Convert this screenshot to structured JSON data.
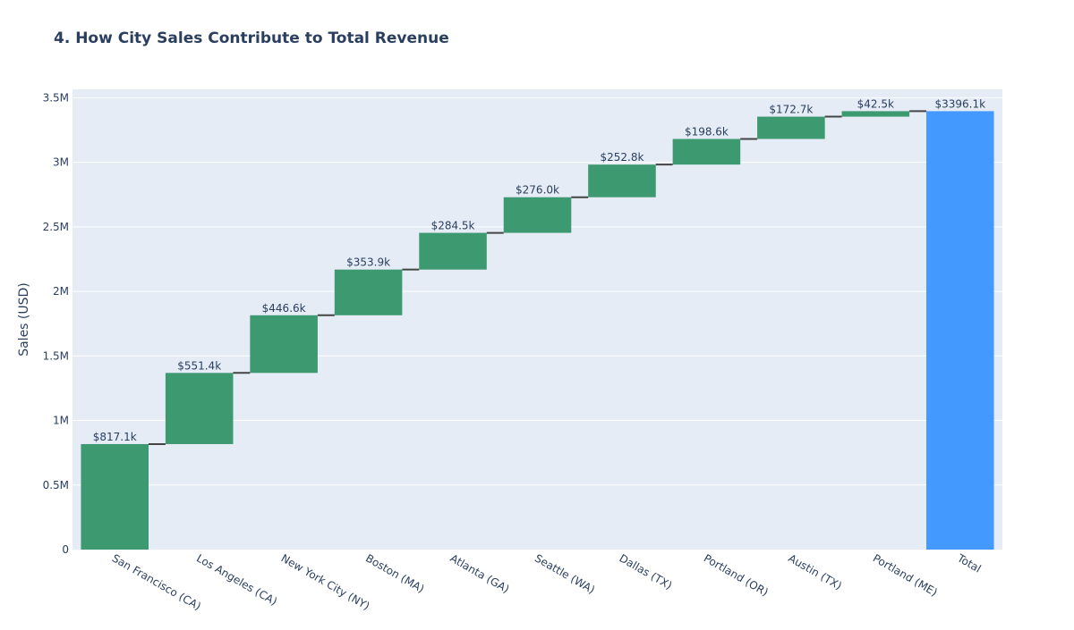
{
  "chart_data": {
    "type": "waterfall",
    "title": "4. How City Sales Contribute to Total Revenue",
    "xlabel": "",
    "ylabel": "Sales (USD)",
    "ylim": [
      0,
      3.5
    ],
    "y_units": "millions USD",
    "y_ticks": [
      0,
      0.5,
      1,
      1.5,
      2,
      2.5,
      3,
      3.5
    ],
    "y_tick_labels": [
      "0",
      "0.5M",
      "1M",
      "1.5M",
      "2M",
      "2.5M",
      "3M",
      "3.5M"
    ],
    "grid": true,
    "colors": {
      "increase": "#3d9970",
      "total": "#4499ff",
      "plot_bg": "#e5ecf6",
      "connector": "#444444"
    },
    "steps": [
      {
        "category": "San Francisco (CA)",
        "value": 817.1,
        "label": "$817.1k",
        "measure": "relative"
      },
      {
        "category": "Los Angeles (CA)",
        "value": 551.4,
        "label": "$551.4k",
        "measure": "relative"
      },
      {
        "category": "New York City (NY)",
        "value": 446.6,
        "label": "$446.6k",
        "measure": "relative"
      },
      {
        "category": "Boston (MA)",
        "value": 353.9,
        "label": "$353.9k",
        "measure": "relative"
      },
      {
        "category": "Atlanta (GA)",
        "value": 284.5,
        "label": "$284.5k",
        "measure": "relative"
      },
      {
        "category": "Seattle (WA)",
        "value": 276.0,
        "label": "$276.0k",
        "measure": "relative"
      },
      {
        "category": "Dallas (TX)",
        "value": 252.8,
        "label": "$252.8k",
        "measure": "relative"
      },
      {
        "category": "Portland (OR)",
        "value": 198.6,
        "label": "$198.6k",
        "measure": "relative"
      },
      {
        "category": "Austin (TX)",
        "value": 172.7,
        "label": "$172.7k",
        "measure": "relative"
      },
      {
        "category": "Portland (ME)",
        "value": 42.5,
        "label": "$42.5k",
        "measure": "relative"
      },
      {
        "category": "Total",
        "value": 3396.1,
        "label": "$3396.1k",
        "measure": "total"
      }
    ]
  }
}
